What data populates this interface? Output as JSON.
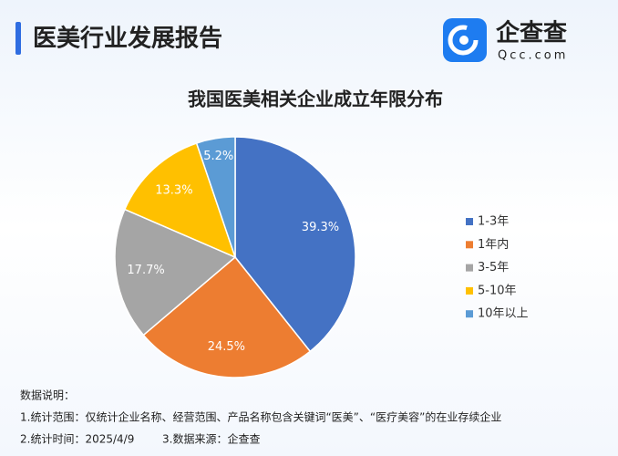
{
  "header": {
    "title": "医美行业发展报告",
    "logo_name": "企查查",
    "logo_domain": "Qcc.com"
  },
  "chart_data": {
    "type": "pie",
    "title": "我国医美相关企业成立年限分布",
    "categories": [
      "1-3年",
      "1年内",
      "3-5年",
      "5-10年",
      "10年以上"
    ],
    "values": [
      39.3,
      24.5,
      17.7,
      13.3,
      5.2
    ],
    "value_labels": [
      "39.3%",
      "24.5%",
      "17.7%",
      "13.3%",
      "5.2%"
    ],
    "colors": [
      "#4472c4",
      "#ed7d31",
      "#a5a5a5",
      "#ffc000",
      "#5b9bd5"
    ],
    "legend": "right"
  },
  "notes": [
    "数据说明：",
    "1.统计范围：仅统计企业名称、经营范围、产品名称包含关键词“医美”、“医疗美容”的在业存续企业",
    "2.统计时间：2025/4/9",
    "3.数据来源：企查查"
  ]
}
